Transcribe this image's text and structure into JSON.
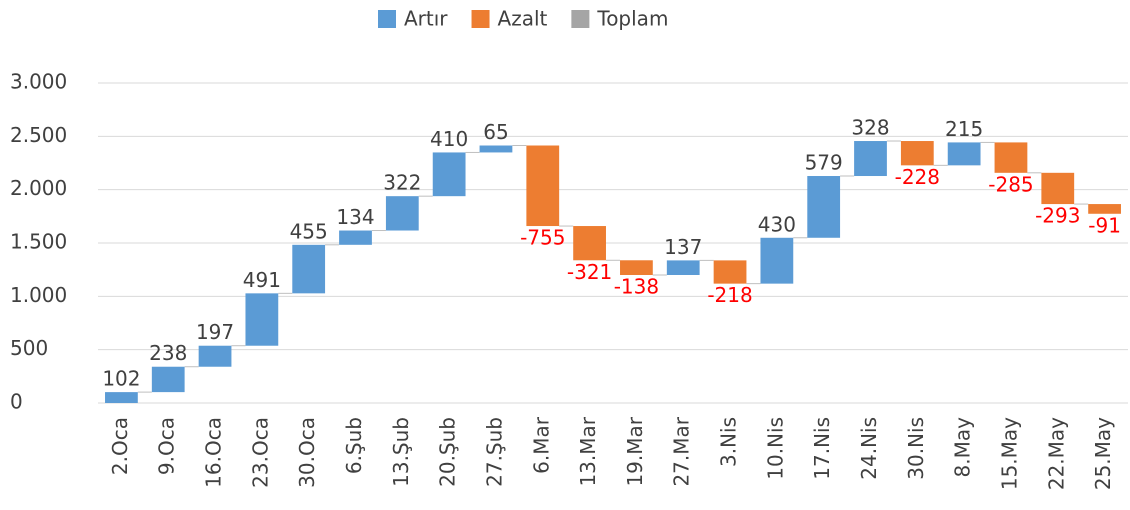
{
  "chart_data": {
    "type": "waterfall",
    "categories": [
      "2.Oca",
      "9.Oca",
      "16.Oca",
      "23.Oca",
      "30.Oca",
      "6.Şub",
      "13.Şub",
      "20.Şub",
      "27.Şub",
      "6.Mar",
      "13.Mar",
      "19.Mar",
      "27.Mar",
      "3.Nis",
      "10.Nis",
      "17.Nis",
      "24.Nis",
      "30.Nis",
      "8.May",
      "15.May",
      "22.May",
      "25.May"
    ],
    "values": [
      102,
      238,
      197,
      491,
      455,
      134,
      322,
      410,
      65,
      -755,
      -321,
      -138,
      137,
      -218,
      430,
      579,
      328,
      -228,
      215,
      -285,
      -293,
      -91
    ],
    "series": [
      {
        "name": "Artır",
        "color": "#5b9bd5"
      },
      {
        "name": "Azalt",
        "color": "#ed7d31"
      },
      {
        "name": "Toplam",
        "color": "#a5a5a5"
      }
    ],
    "negative_label_color": "#ff0000",
    "ylim": [
      0,
      3000
    ],
    "yticks": [
      0,
      500,
      {
        "value": 1000,
        "label": "1.000"
      },
      {
        "value": 1500,
        "label": "1.500"
      },
      {
        "value": 2000,
        "label": "2.000"
      },
      {
        "value": 2500,
        "label": "2.500"
      },
      {
        "value": 3000,
        "label": "3.000"
      }
    ],
    "grid": true,
    "legend": "top"
  }
}
